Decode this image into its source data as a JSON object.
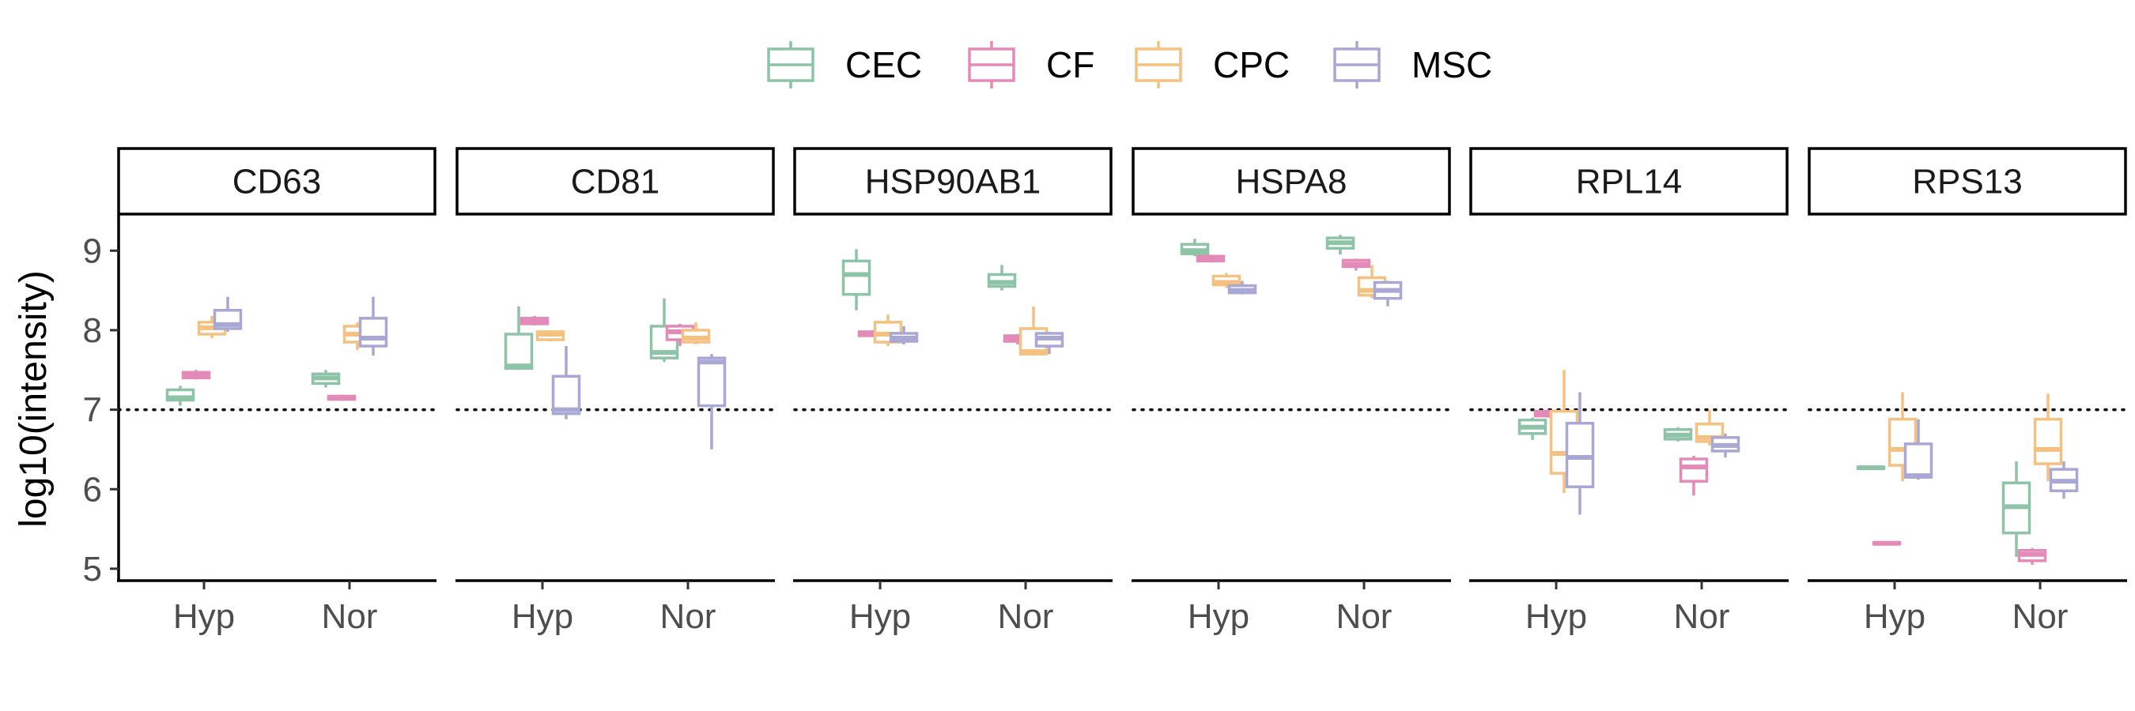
{
  "chart_data": {
    "type": "box",
    "ylabel": "log10(intensity)",
    "xlabel": "",
    "ylim": [
      4.85,
      9.45
    ],
    "yticks": [
      5,
      6,
      7,
      8,
      9
    ],
    "reference_line": 7,
    "legend_position": "top",
    "categories": [
      "Hyp",
      "Nor"
    ],
    "series": [
      {
        "name": "CEC",
        "color": "#8DC3A6"
      },
      {
        "name": "CF",
        "color": "#E38AB9"
      },
      {
        "name": "CPC",
        "color": "#F5C181"
      },
      {
        "name": "MSC",
        "color": "#A9A7D3"
      }
    ],
    "panels": [
      {
        "label": "CD63",
        "boxes": [
          [
            [
              7.05,
              7.12,
              7.15,
              7.25,
              7.3
            ],
            [
              7.38,
              7.4,
              7.43,
              7.47,
              7.5
            ],
            [
              7.9,
              7.95,
              8.03,
              8.1,
              8.18
            ],
            [
              7.98,
              8.02,
              8.07,
              8.25,
              8.42
            ]
          ],
          [
            [
              7.28,
              7.33,
              7.4,
              7.45,
              7.5
            ],
            [
              7.11,
              7.13,
              7.15,
              7.17,
              7.19
            ],
            [
              7.75,
              7.85,
              7.95,
              8.05,
              8.1
            ],
            [
              7.68,
              7.8,
              7.9,
              8.15,
              8.42
            ]
          ]
        ]
      },
      {
        "label": "CD81",
        "boxes": [
          [
            [
              7.5,
              7.52,
              7.55,
              7.95,
              8.3
            ],
            [
              8.06,
              8.08,
              8.12,
              8.15,
              8.18
            ],
            [
              7.86,
              7.88,
              7.95,
              7.98,
              8.0
            ],
            [
              6.88,
              6.95,
              7.0,
              7.42,
              7.8
            ]
          ],
          [
            [
              7.6,
              7.65,
              7.72,
              8.05,
              8.4
            ],
            [
              7.8,
              7.88,
              7.98,
              8.05,
              8.08
            ],
            [
              7.82,
              7.85,
              7.9,
              8.0,
              8.1
            ],
            [
              6.5,
              7.05,
              7.6,
              7.65,
              7.7
            ]
          ]
        ]
      },
      {
        "label": "HSP90AB1",
        "boxes": [
          [
            [
              8.25,
              8.45,
              8.7,
              8.87,
              9.02
            ],
            [
              7.92,
              7.93,
              7.95,
              7.98,
              8.0
            ],
            [
              7.8,
              7.85,
              7.95,
              8.1,
              8.2
            ],
            [
              7.82,
              7.86,
              7.9,
              7.96,
              8.05
            ]
          ],
          [
            [
              8.5,
              8.55,
              8.6,
              8.7,
              8.82
            ],
            [
              7.82,
              7.86,
              7.9,
              7.93,
              7.95
            ],
            [
              7.68,
              7.7,
              7.73,
              8.02,
              8.3
            ],
            [
              7.7,
              7.8,
              7.9,
              7.96,
              7.98
            ]
          ]
        ]
      },
      {
        "label": "HSPA8",
        "boxes": [
          [
            [
              8.93,
              8.96,
              9.0,
              9.08,
              9.15
            ],
            [
              8.85,
              8.87,
              8.9,
              8.93,
              8.95
            ],
            [
              8.53,
              8.57,
              8.6,
              8.68,
              8.72
            ],
            [
              8.45,
              8.47,
              8.5,
              8.56,
              8.62
            ]
          ],
          [
            [
              8.95,
              9.03,
              9.1,
              9.16,
              9.2
            ],
            [
              8.75,
              8.8,
              8.83,
              8.88,
              8.9
            ],
            [
              8.4,
              8.44,
              8.5,
              8.66,
              8.82
            ],
            [
              8.3,
              8.4,
              8.5,
              8.6,
              8.62
            ]
          ]
        ]
      },
      {
        "label": "RPL14",
        "boxes": [
          [
            [
              6.62,
              6.7,
              6.78,
              6.87,
              6.9
            ],
            [
              6.9,
              6.92,
              6.95,
              6.98,
              7.0
            ],
            [
              5.95,
              6.2,
              6.45,
              6.98,
              7.5
            ],
            [
              5.68,
              6.03,
              6.4,
              6.83,
              7.22
            ]
          ],
          [
            [
              6.6,
              6.63,
              6.68,
              6.75,
              6.78
            ],
            [
              5.92,
              6.1,
              6.28,
              6.38,
              6.42
            ],
            [
              6.55,
              6.6,
              6.65,
              6.82,
              7.0
            ],
            [
              6.4,
              6.48,
              6.55,
              6.65,
              6.7
            ]
          ]
        ]
      },
      {
        "label": "RPS13",
        "boxes": [
          [
            [
              6.25,
              6.26,
              6.27,
              6.28,
              6.29
            ],
            [
              5.3,
              5.31,
              5.32,
              5.33,
              5.34
            ],
            [
              6.1,
              6.3,
              6.5,
              6.88,
              7.22
            ],
            [
              6.12,
              6.15,
              6.17,
              6.57,
              6.88
            ]
          ],
          [
            [
              5.15,
              5.45,
              5.78,
              6.08,
              6.35
            ],
            [
              5.05,
              5.1,
              5.18,
              5.23,
              5.26
            ],
            [
              6.1,
              6.32,
              6.5,
              6.88,
              7.2
            ],
            [
              5.88,
              5.98,
              6.1,
              6.25,
              6.35
            ]
          ]
        ]
      }
    ]
  }
}
